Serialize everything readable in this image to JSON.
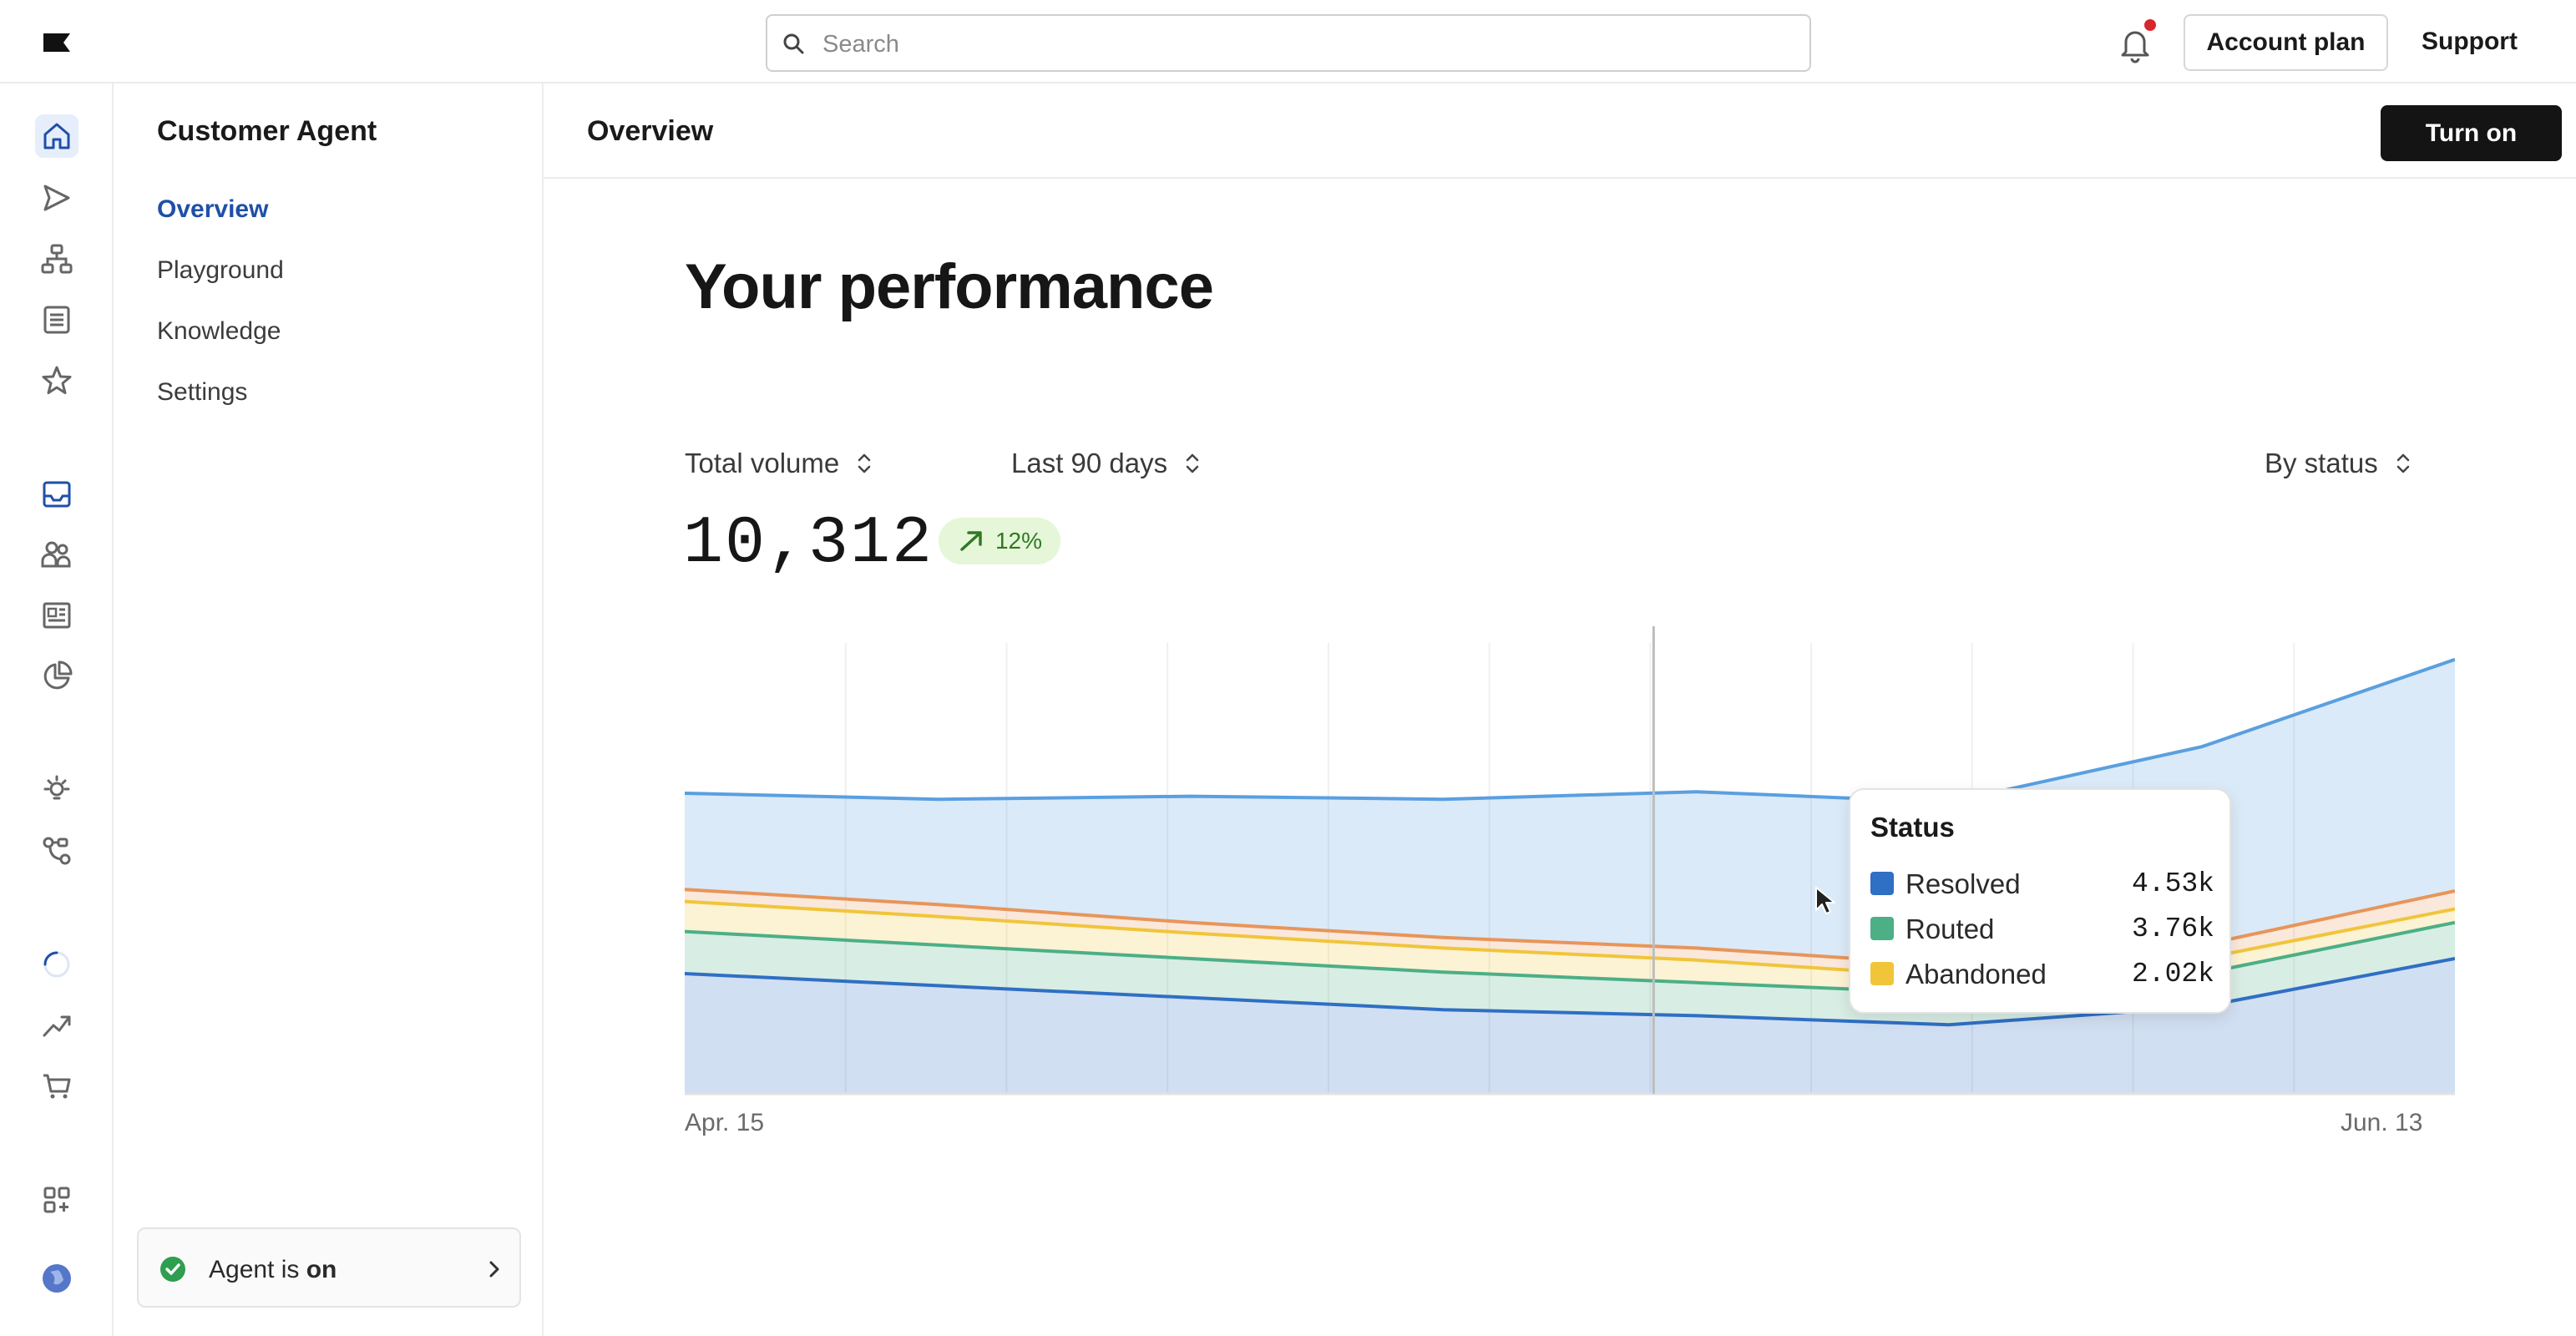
{
  "topbar": {
    "search_placeholder": "Search",
    "account_plan_label": "Account plan",
    "support_label": "Support",
    "icons": [
      "logo-flag-icon",
      "search-icon",
      "bell-icon"
    ]
  },
  "rail": {
    "icons": [
      "home-icon",
      "send-icon",
      "hierarchy-icon",
      "document-list-icon",
      "star-icon",
      "inbox-icon",
      "users-icon",
      "newspaper-icon",
      "pie-chart-icon",
      "lightbulb-icon",
      "workflow-icon",
      "loading-icon",
      "trend-icon",
      "cart-icon",
      "apps-icon",
      "avatar-globe-icon"
    ],
    "active": "home-icon",
    "accent": "#1f4fa8"
  },
  "subnav": {
    "title": "Customer Agent",
    "items": [
      {
        "label": "Overview",
        "active": true
      },
      {
        "label": "Playground",
        "active": false
      },
      {
        "label": "Knowledge",
        "active": false
      },
      {
        "label": "Settings",
        "active": false
      }
    ],
    "agent_status": {
      "prefix": "Agent is ",
      "state": "on"
    }
  },
  "main": {
    "title": "Overview",
    "turn_on_label": "Turn on",
    "heading": "Your performance",
    "metric_select": "Total volume",
    "range_select": "Last 90 days",
    "group_select": "By status",
    "total": "10,312",
    "change": "12%"
  },
  "chart_data": {
    "type": "area",
    "stacked": true,
    "x": [
      "Apr. 15",
      "",
      "",
      "",
      "",
      "",
      "",
      "Jun. 13"
    ],
    "x_tick_labels": [
      "Apr. 15",
      "Jun. 13"
    ],
    "series": [
      {
        "name": "Resolved",
        "color": "#2f6fc4",
        "values": [
          4.0,
          3.6,
          3.2,
          2.8,
          2.6,
          2.3,
          2.9,
          4.5
        ]
      },
      {
        "name": "Routed",
        "color": "#4caf86",
        "values": [
          1.4,
          1.35,
          1.3,
          1.25,
          1.1,
          1.05,
          1.1,
          1.2
        ]
      },
      {
        "name": "Abandoned",
        "color": "#f0c53a",
        "values": [
          1.0,
          0.95,
          0.85,
          0.8,
          0.75,
          0.55,
          0.5,
          0.45
        ]
      },
      {
        "name": "",
        "color": "#e8955a",
        "values": [
          0.4,
          0.4,
          0.35,
          0.35,
          0.4,
          0.4,
          0.45,
          0.6
        ]
      },
      {
        "name": "",
        "color": "#5a9fe0",
        "values": [
          3.2,
          3.5,
          4.2,
          4.6,
          5.2,
          5.4,
          6.6,
          7.7
        ]
      }
    ],
    "tooltip": {
      "title": "Status",
      "rows": [
        {
          "label": "Resolved",
          "value": "4.53k",
          "color": "#2f6fc4"
        },
        {
          "label": "Routed",
          "value": "3.76k",
          "color": "#4caf86"
        },
        {
          "label": "Abandoned",
          "value": "2.02k",
          "color": "#f0c53a"
        }
      ]
    },
    "ylim": [
      0,
      15
    ],
    "grid": true
  }
}
